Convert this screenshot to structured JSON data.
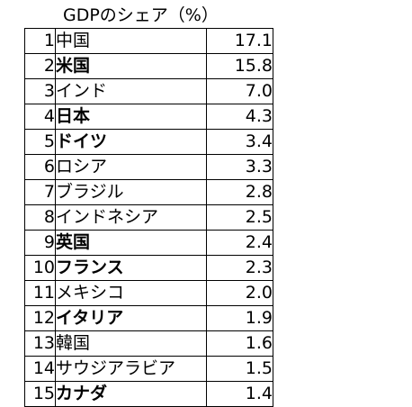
{
  "title": "GDPのシェア（%）",
  "rows": [
    {
      "rank": "1",
      "country": "中国",
      "share": "17.1",
      "bold": false
    },
    {
      "rank": "2",
      "country": "米国",
      "share": "15.8",
      "bold": true
    },
    {
      "rank": "3",
      "country": "インド",
      "share": "7.0",
      "bold": false
    },
    {
      "rank": "4",
      "country": "日本",
      "share": "4.3",
      "bold": true
    },
    {
      "rank": "5",
      "country": "ドイツ",
      "share": "3.4",
      "bold": true
    },
    {
      "rank": "6",
      "country": "ロシア",
      "share": "3.3",
      "bold": false
    },
    {
      "rank": "7",
      "country": "ブラジル",
      "share": "2.8",
      "bold": false
    },
    {
      "rank": "8",
      "country": "インドネシア",
      "share": "2.5",
      "bold": false
    },
    {
      "rank": "9",
      "country": "英国",
      "share": "2.4",
      "bold": true
    },
    {
      "rank": "10",
      "country": "フランス",
      "share": "2.3",
      "bold": true
    },
    {
      "rank": "11",
      "country": "メキシコ",
      "share": "2.0",
      "bold": false
    },
    {
      "rank": "12",
      "country": "イタリア",
      "share": "1.9",
      "bold": true
    },
    {
      "rank": "13",
      "country": "韓国",
      "share": "1.6",
      "bold": false
    },
    {
      "rank": "14",
      "country": "サウジアラビア",
      "share": "1.5",
      "bold": false
    },
    {
      "rank": "15",
      "country": "カナダ",
      "share": "1.4",
      "bold": true
    }
  ]
}
